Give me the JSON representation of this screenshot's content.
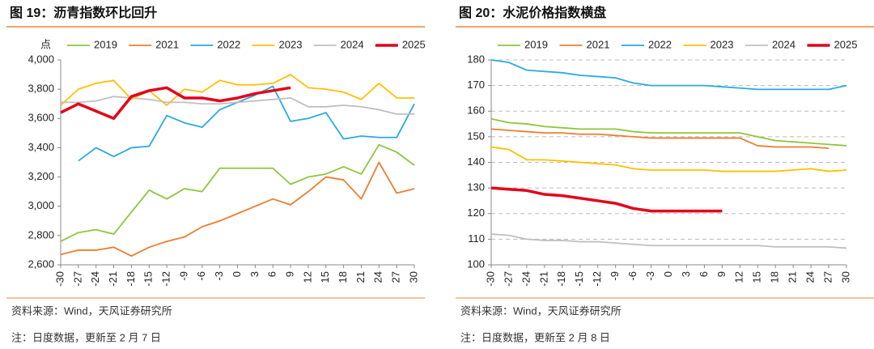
{
  "chart_data": [
    {
      "type": "line",
      "title": "图 19：沥青指数环比回升",
      "y_unit": "点",
      "source": "资料来源：Wind，天风证券研究所",
      "note": "注：日度数据，更新至 2 月 7 日",
      "x": [
        -30,
        -27,
        -24,
        -21,
        -18,
        -15,
        -12,
        -9,
        -6,
        -3,
        0,
        3,
        6,
        9,
        12,
        15,
        18,
        21,
        24,
        27,
        30
      ],
      "xlim": [
        -30,
        30
      ],
      "xticks": [
        -30,
        -27,
        -24,
        -21,
        -18,
        -15,
        -12,
        -9,
        -6,
        -3,
        0,
        3,
        6,
        9,
        12,
        15,
        18,
        21,
        24,
        27,
        30
      ],
      "ylim": [
        2600,
        4000
      ],
      "yticks": [
        {
          "value": 2600,
          "label": "2,600"
        },
        {
          "value": 2800,
          "label": "2,800"
        },
        {
          "value": 3000,
          "label": "3,000"
        },
        {
          "value": 3200,
          "label": "3,200"
        },
        {
          "value": 3400,
          "label": "3,400"
        },
        {
          "value": 3600,
          "label": "3,600"
        },
        {
          "value": 3800,
          "label": "3,800"
        },
        {
          "value": 4000,
          "label": "4,000"
        }
      ],
      "grid": false,
      "series": [
        {
          "name": "2019",
          "color": "#8dc63f",
          "values": [
            2760,
            2820,
            2840,
            2810,
            2960,
            3110,
            3050,
            3120,
            3100,
            3260,
            3260,
            3260,
            3260,
            3150,
            3200,
            3220,
            3270,
            3220,
            3420,
            3370,
            3280
          ]
        },
        {
          "name": "2021",
          "color": "#ed7d31",
          "values": [
            2670,
            2700,
            2700,
            2720,
            2660,
            2720,
            2760,
            2790,
            2860,
            2900,
            2950,
            3000,
            3050,
            3010,
            3100,
            3200,
            3180,
            3050,
            3300,
            3090,
            3120
          ]
        },
        {
          "name": "2022",
          "color": "#29aae1",
          "values": [
            null,
            3310,
            3400,
            3340,
            3400,
            3410,
            3620,
            3570,
            3540,
            3660,
            3710,
            3760,
            3820,
            3580,
            3600,
            3640,
            3460,
            3480,
            3470,
            3470,
            3700
          ]
        },
        {
          "name": "2023",
          "color": "#ffc000",
          "values": [
            3690,
            3800,
            3840,
            3860,
            3730,
            3790,
            3690,
            3800,
            3780,
            3860,
            3830,
            3830,
            3840,
            3900,
            3810,
            3800,
            3780,
            3730,
            3840,
            3740,
            3740
          ]
        },
        {
          "name": "2024",
          "color": "#bfbfbf",
          "values": [
            3710,
            3710,
            3720,
            3750,
            3740,
            3730,
            3710,
            3710,
            3700,
            3700,
            3710,
            3720,
            3730,
            3740,
            3680,
            3680,
            3690,
            3680,
            3660,
            3630,
            3630
          ]
        },
        {
          "name": "2025",
          "color": "#e3001b",
          "values": [
            3640,
            3700,
            3650,
            3600,
            3750,
            3790,
            3810,
            3740,
            3740,
            3720,
            3740,
            3770,
            3790,
            3810,
            null,
            null,
            null,
            null,
            null,
            null,
            null
          ]
        }
      ]
    },
    {
      "type": "line",
      "title": "图 20：水泥价格指数横盘",
      "source": "资料来源：Wind，天风证券研究所",
      "note": "注：日度数据，更新至 2 月 8 日",
      "x": [
        -30,
        -27,
        -24,
        -21,
        -18,
        -15,
        -12,
        -9,
        -6,
        -3,
        0,
        3,
        6,
        9,
        12,
        15,
        18,
        21,
        24,
        27,
        30
      ],
      "xlim": [
        -30,
        30
      ],
      "xticks": [
        -30,
        -27,
        -24,
        -21,
        -18,
        -15,
        -12,
        -9,
        -6,
        -3,
        0,
        3,
        6,
        9,
        12,
        15,
        18,
        21,
        24,
        27,
        30
      ],
      "ylim": [
        100,
        180
      ],
      "yticks": [
        100,
        110,
        120,
        130,
        140,
        150,
        160,
        170,
        180
      ],
      "grid": true,
      "series": [
        {
          "name": "2019",
          "color": "#8dc63f",
          "values": [
            157,
            155.5,
            155,
            154,
            153.5,
            153,
            153,
            153,
            152,
            151.5,
            151.5,
            151.5,
            151.5,
            151.5,
            151.5,
            150,
            148.5,
            148,
            147.5,
            147,
            146.5
          ]
        },
        {
          "name": "2021",
          "color": "#ed7d31",
          "values": [
            153,
            152.5,
            152,
            151.5,
            151.5,
            151,
            151,
            150.5,
            150,
            149.5,
            149.5,
            149.5,
            149.5,
            149.5,
            149.5,
            146.5,
            146,
            146,
            146,
            145.5,
            null
          ]
        },
        {
          "name": "2022",
          "color": "#29aae1",
          "values": [
            180,
            179,
            176,
            175.5,
            175,
            174,
            173.5,
            173,
            171,
            170,
            170,
            170,
            170,
            169.5,
            169,
            168.5,
            168.5,
            168.5,
            168.5,
            168.5,
            170
          ]
        },
        {
          "name": "2023",
          "color": "#ffc000",
          "values": [
            146,
            145,
            141,
            141,
            140.5,
            140,
            139.5,
            139,
            137.5,
            137,
            137,
            137,
            137,
            136.5,
            136.5,
            136.5,
            136.5,
            137,
            137.5,
            136.5,
            137
          ]
        },
        {
          "name": "2024",
          "color": "#bfbfbf",
          "values": [
            112,
            111.5,
            110,
            109.5,
            109.5,
            109,
            109,
            108.5,
            108,
            107.5,
            107.5,
            107.5,
            107.5,
            107.5,
            107.5,
            107.5,
            107,
            107,
            107,
            107,
            106.5
          ]
        },
        {
          "name": "2025",
          "color": "#e3001b",
          "values": [
            130,
            129.5,
            129,
            127.5,
            127,
            126,
            125,
            124,
            122,
            121,
            121,
            121,
            121,
            121,
            null,
            null,
            null,
            null,
            null,
            null,
            null
          ]
        }
      ]
    }
  ]
}
